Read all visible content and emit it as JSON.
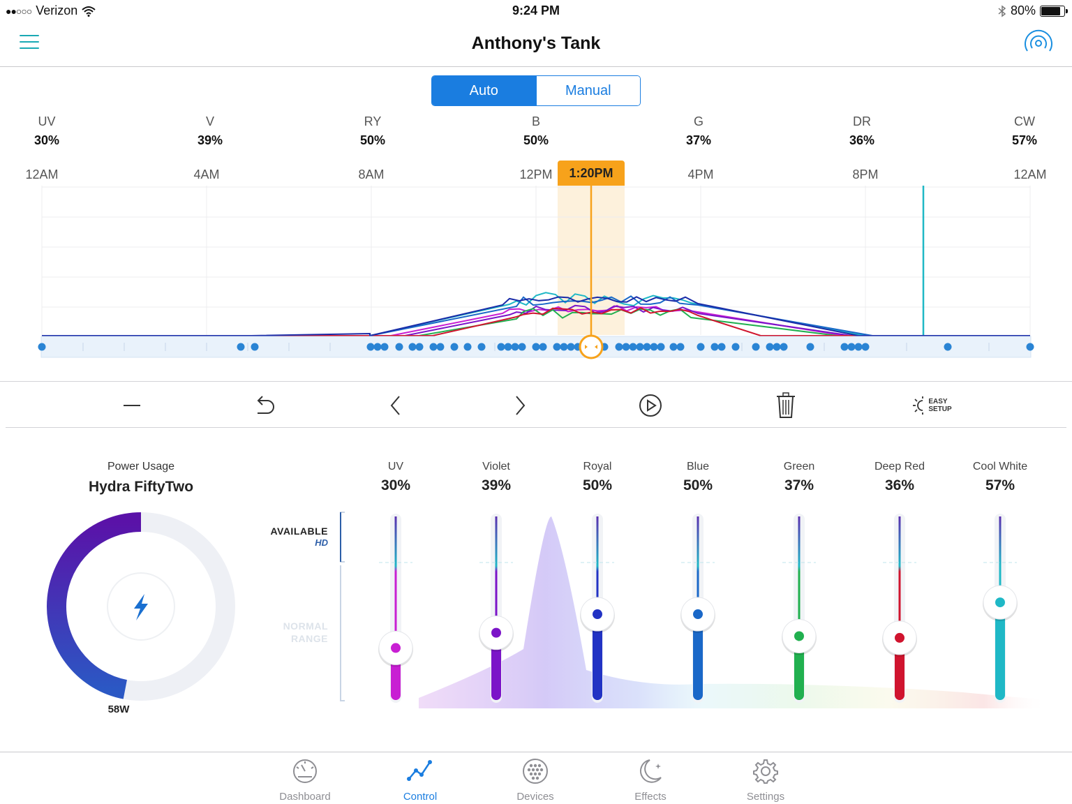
{
  "status_bar": {
    "carrier": "Verizon",
    "time": "9:24 PM",
    "battery": "80%",
    "battery_level": 0.8
  },
  "nav": {
    "title": "Anthony's Tank"
  },
  "mode": {
    "auto_label": "Auto",
    "manual_label": "Manual",
    "selected": "Auto"
  },
  "channel_summary": [
    {
      "name": "UV",
      "value": "30%"
    },
    {
      "name": "V",
      "value": "39%"
    },
    {
      "name": "RY",
      "value": "50%"
    },
    {
      "name": "B",
      "value": "50%"
    },
    {
      "name": "G",
      "value": "37%"
    },
    {
      "name": "DR",
      "value": "36%"
    },
    {
      "name": "CW",
      "value": "57%"
    }
  ],
  "timeline": {
    "labels": [
      "12AM",
      "4AM",
      "8AM",
      "12PM",
      "4PM",
      "8PM",
      "12AM"
    ],
    "current_time": "1:20PM"
  },
  "toolbar": {
    "easy_setup_line1": "EASY",
    "easy_setup_line2": "SETUP"
  },
  "power": {
    "caption": "Power Usage",
    "device": "Hydra FiftyTwo",
    "watts": "58W",
    "fraction": 0.47
  },
  "range_labels": {
    "available": "AVAILABLE",
    "hd": "HD",
    "normal_1": "NORMAL",
    "normal_2": "RANGE"
  },
  "sliders": [
    {
      "name": "UV",
      "value": "30%",
      "level": 0.3,
      "color": "#c81fd3"
    },
    {
      "name": "Violet",
      "value": "39%",
      "level": 0.39,
      "color": "#7b14c8"
    },
    {
      "name": "Royal",
      "value": "50%",
      "level": 0.5,
      "color": "#2233c4"
    },
    {
      "name": "Blue",
      "value": "50%",
      "level": 0.5,
      "color": "#1a68c8"
    },
    {
      "name": "Green",
      "value": "37%",
      "level": 0.37,
      "color": "#21b04f"
    },
    {
      "name": "Deep Red",
      "value": "36%",
      "level": 0.36,
      "color": "#d0142e"
    },
    {
      "name": "Cool White",
      "value": "57%",
      "level": 0.57,
      "color": "#1fb8c6"
    }
  ],
  "tabs": [
    {
      "label": "Dashboard",
      "icon": "gauge-icon"
    },
    {
      "label": "Control",
      "icon": "graph-icon",
      "active": true
    },
    {
      "label": "Devices",
      "icon": "dots-grid-icon"
    },
    {
      "label": "Effects",
      "icon": "moon-stars-icon"
    },
    {
      "label": "Settings",
      "icon": "gear-icon"
    }
  ]
}
